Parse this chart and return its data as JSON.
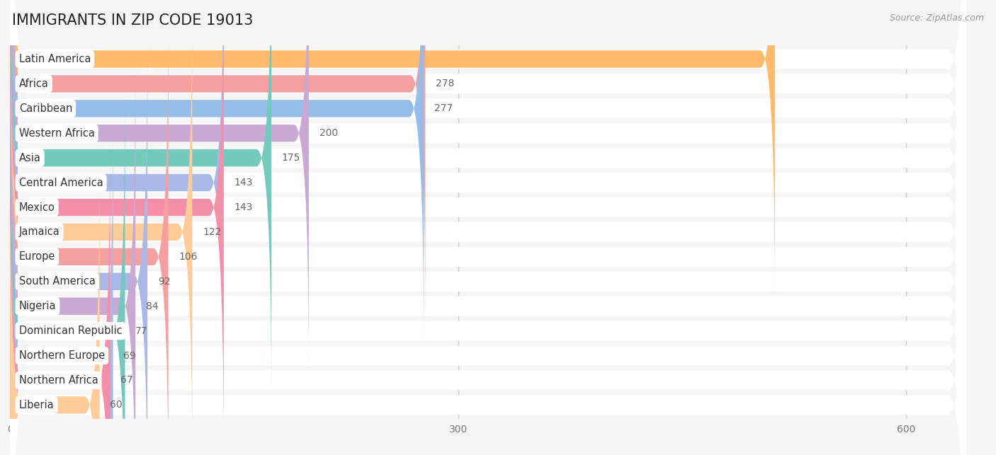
{
  "title": "IMMIGRANTS IN ZIP CODE 19013",
  "source": "Source: ZipAtlas.com",
  "categories": [
    "Latin America",
    "Africa",
    "Caribbean",
    "Western Africa",
    "Asia",
    "Central America",
    "Mexico",
    "Jamaica",
    "Europe",
    "South America",
    "Nigeria",
    "Dominican Republic",
    "Northern Europe",
    "Northern Africa",
    "Liberia"
  ],
  "values": [
    512,
    278,
    277,
    200,
    175,
    143,
    143,
    122,
    106,
    92,
    84,
    77,
    69,
    67,
    60
  ],
  "colors": [
    "#FFBB6B",
    "#F4A0A0",
    "#94BDE8",
    "#C9A8D4",
    "#72C9BC",
    "#A8B8E8",
    "#F48FAA",
    "#FFCC99",
    "#F4A0A0",
    "#A8B8E8",
    "#C9A8D4",
    "#72C9BC",
    "#A8B8E8",
    "#F48FAA",
    "#FFCC99"
  ],
  "xlim_max": 640,
  "xticks": [
    0,
    300,
    600
  ],
  "bg_color": "#f5f5f5",
  "bar_bg_color": "#e8e8e8",
  "row_bg_color": "#ffffff",
  "title_fontsize": 15,
  "label_fontsize": 10.5,
  "value_fontsize": 10
}
